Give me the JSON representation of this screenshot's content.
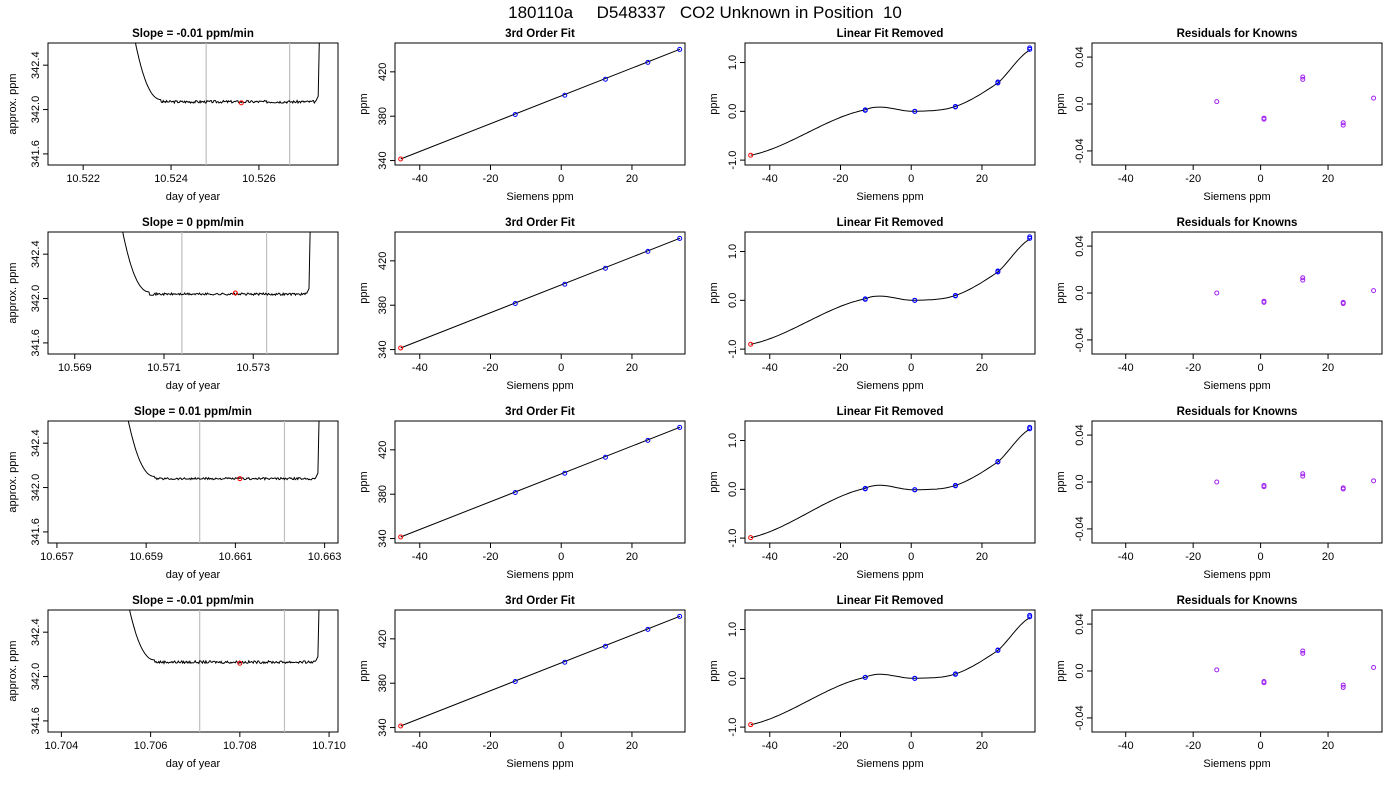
{
  "title": "180110a     D548337   CO2 Unknown in Position  10",
  "colors": {
    "line": "#000000",
    "vline": "#bfbfbf",
    "unknown": "#ff0000",
    "known": "#0000ff",
    "residual": "#a020f0"
  },
  "rows": [
    {
      "time_panel": {
        "title": "Slope =  -0.01  ppm/min"
      },
      "fit_panel": {
        "title": "3rd Order Fit"
      },
      "lin_panel": {
        "title": "Linear Fit Removed"
      },
      "res_panel": {
        "title": "Residuals for Knowns"
      }
    },
    {
      "time_panel": {
        "title": "Slope =  0  ppm/min"
      },
      "fit_panel": {
        "title": "3rd Order Fit"
      },
      "lin_panel": {
        "title": "Linear Fit Removed"
      },
      "res_panel": {
        "title": "Residuals for Knowns"
      }
    },
    {
      "time_panel": {
        "title": "Slope =  0.01  ppm/min"
      },
      "fit_panel": {
        "title": "3rd Order Fit"
      },
      "lin_panel": {
        "title": "Linear Fit Removed"
      },
      "res_panel": {
        "title": "Residuals for Knowns"
      }
    },
    {
      "time_panel": {
        "title": "Slope =  -0.01  ppm/min"
      },
      "fit_panel": {
        "title": "3rd Order Fit"
      },
      "lin_panel": {
        "title": "Linear Fit Removed"
      },
      "res_panel": {
        "title": "Residuals for Knowns"
      }
    }
  ],
  "chart_data": [
    {
      "type": "line",
      "title": "Slope =  -0.01  ppm/min",
      "xlabel": "day of year",
      "ylabel": "approx. ppm",
      "xlim": [
        10.5212,
        10.5278
      ],
      "ylim": [
        341.5,
        342.6
      ],
      "xticks": [
        10.522,
        10.524,
        10.526
      ],
      "xtick_labels": [
        "10.522",
        "10.524",
        "10.526"
      ],
      "yticks": [
        341.6,
        342.0,
        342.4
      ],
      "ytick_labels": [
        "341.6",
        "342.0",
        "342.4"
      ],
      "vlines": [
        10.5248,
        10.5267
      ],
      "trace_start": 10.523,
      "trace_end": 10.5273,
      "plateau": 342.07,
      "noise": 0.012,
      "unknown_point": {
        "x": 10.5256,
        "y": 342.06
      }
    },
    {
      "type": "scatter",
      "title": "3rd Order Fit",
      "xlabel": "Siemens ppm",
      "ylabel": "ppm",
      "xlim": [
        -47,
        35
      ],
      "ylim": [
        336,
        446
      ],
      "xticks": [
        -40,
        -20,
        0,
        20
      ],
      "yticks": [
        340,
        380,
        420
      ],
      "knowns": {
        "x": [
          -13,
          1,
          12.5,
          24.5,
          33.5
        ],
        "y": [
          381.5,
          398.9,
          413.3,
          428.5,
          440.2
        ]
      },
      "unknown": {
        "x": -45.4,
        "y": 341.4
      },
      "fit": {
        "slope": 1.253,
        "intercept": 398.3
      }
    },
    {
      "type": "scatter",
      "title": "Linear Fit Removed",
      "xlabel": "Siemens ppm",
      "ylabel": "ppm",
      "xlim": [
        -47,
        35
      ],
      "ylim": [
        -1.1,
        1.4
      ],
      "xticks": [
        -40,
        -20,
        0,
        20
      ],
      "yticks": [
        -1.0,
        0.0,
        1.0
      ],
      "knowns": {
        "x": [
          -13,
          -13,
          1,
          1,
          12.5,
          12.5,
          24.5,
          24.5,
          33.5,
          33.5
        ],
        "y": [
          0.03,
          0.02,
          0.0,
          0.0,
          0.1,
          0.09,
          0.58,
          0.6,
          1.27,
          1.3
        ]
      },
      "unknown": {
        "x": -45.4,
        "y": -0.9
      },
      "curve": {
        "x": [
          -45.4,
          -13,
          1,
          12.5,
          24.5,
          33.5
        ],
        "y": [
          -0.9,
          0.03,
          0.0,
          0.1,
          0.58,
          1.25
        ]
      }
    },
    {
      "type": "scatter",
      "title": "Residuals for Knowns",
      "xlabel": "Siemens ppm",
      "ylabel": "ppm",
      "xlim": [
        -50,
        36
      ],
      "ylim": [
        -0.052,
        0.052
      ],
      "xticks": [
        -40,
        -20,
        0,
        20
      ],
      "yticks": [
        -0.04,
        0.0,
        0.04
      ],
      "points": {
        "x": [
          -13,
          1,
          1,
          12.5,
          12.5,
          24.5,
          24.5,
          33.5
        ],
        "y": [
          0.002,
          -0.012,
          -0.013,
          0.021,
          0.023,
          -0.016,
          -0.018,
          0.005
        ]
      }
    },
    {
      "type": "line",
      "title": "Slope =  0  ppm/min",
      "xlabel": "day of year",
      "ylabel": "approx. ppm",
      "xlim": [
        10.5684,
        10.5749
      ],
      "ylim": [
        341.5,
        342.6
      ],
      "xticks": [
        10.569,
        10.571,
        10.573
      ],
      "xtick_labels": [
        "10.569",
        "10.571",
        "10.573"
      ],
      "yticks": [
        341.6,
        342.0,
        342.4
      ],
      "ytick_labels": [
        "341.6",
        "342.0",
        "342.4"
      ],
      "vlines": [
        10.5714,
        10.5733
      ],
      "trace_start": 10.5699,
      "trace_end": 10.5742,
      "plateau": 342.04,
      "noise": 0.01,
      "unknown_point": {
        "x": 10.5726,
        "y": 342.05
      }
    },
    {
      "type": "scatter",
      "title": "3rd Order Fit",
      "xlabel": "Siemens ppm",
      "ylabel": "ppm",
      "xlim": [
        -47,
        35
      ],
      "ylim": [
        336,
        446
      ],
      "xticks": [
        -40,
        -20,
        0,
        20
      ],
      "yticks": [
        340,
        380,
        420
      ],
      "knowns": {
        "x": [
          -13,
          1,
          12.5,
          24.5,
          33.5
        ],
        "y": [
          381.5,
          398.9,
          413.3,
          428.5,
          440.2
        ]
      },
      "unknown": {
        "x": -45.4,
        "y": 341.4
      },
      "fit": {
        "slope": 1.253,
        "intercept": 398.3
      }
    },
    {
      "type": "scatter",
      "title": "Linear Fit Removed",
      "xlabel": "Siemens ppm",
      "ylabel": "ppm",
      "xlim": [
        -47,
        35
      ],
      "ylim": [
        -1.1,
        1.4
      ],
      "xticks": [
        -40,
        -20,
        0,
        20
      ],
      "yticks": [
        -1.0,
        0.0,
        1.0
      ],
      "knowns": {
        "x": [
          -13,
          -13,
          1,
          1,
          12.5,
          12.5,
          24.5,
          24.5,
          33.5,
          33.5
        ],
        "y": [
          0.03,
          0.02,
          0.0,
          0.0,
          0.1,
          0.09,
          0.58,
          0.6,
          1.27,
          1.3
        ]
      },
      "unknown": {
        "x": -45.4,
        "y": -0.9
      },
      "curve": {
        "x": [
          -45.4,
          -13,
          1,
          12.5,
          24.5,
          33.5
        ],
        "y": [
          -0.9,
          0.03,
          0.0,
          0.1,
          0.58,
          1.25
        ]
      }
    },
    {
      "type": "scatter",
      "title": "Residuals for Knowns",
      "xlabel": "Siemens ppm",
      "ylabel": "ppm",
      "xlim": [
        -50,
        36
      ],
      "ylim": [
        -0.052,
        0.052
      ],
      "xticks": [
        -40,
        -20,
        0,
        20
      ],
      "yticks": [
        -0.04,
        0.0,
        0.04
      ],
      "points": {
        "x": [
          -13,
          1,
          1,
          12.5,
          12.5,
          24.5,
          24.5,
          33.5
        ],
        "y": [
          0.0,
          -0.007,
          -0.008,
          0.011,
          0.013,
          -0.008,
          -0.009,
          0.002
        ]
      }
    },
    {
      "type": "line",
      "title": "Slope =  0.01  ppm/min",
      "xlabel": "day of year",
      "ylabel": "approx. ppm",
      "xlim": [
        10.6568,
        10.6633
      ],
      "ylim": [
        341.5,
        342.6
      ],
      "xticks": [
        10.657,
        10.659,
        10.661,
        10.663
      ],
      "xtick_labels": [
        "10.657",
        "10.659",
        "10.661",
        "10.663"
      ],
      "yticks": [
        341.6,
        342.0,
        342.4
      ],
      "ytick_labels": [
        "341.6",
        "342.0",
        "342.4"
      ],
      "vlines": [
        10.6602,
        10.6621
      ],
      "trace_start": 10.6584,
      "trace_end": 10.6628,
      "plateau": 342.08,
      "noise": 0.01,
      "unknown_point": {
        "x": 10.6611,
        "y": 342.08
      }
    },
    {
      "type": "scatter",
      "title": "3rd Order Fit",
      "xlabel": "Siemens ppm",
      "ylabel": "ppm",
      "xlim": [
        -47,
        35
      ],
      "ylim": [
        336,
        446
      ],
      "xticks": [
        -40,
        -20,
        0,
        20
      ],
      "yticks": [
        340,
        380,
        420
      ],
      "knowns": {
        "x": [
          -13,
          1,
          12.5,
          24.5,
          33.5
        ],
        "y": [
          381.5,
          398.9,
          413.3,
          428.5,
          440.2
        ]
      },
      "unknown": {
        "x": -45.4,
        "y": 341.4
      },
      "fit": {
        "slope": 1.253,
        "intercept": 398.3
      }
    },
    {
      "type": "scatter",
      "title": "Linear Fit Removed",
      "xlabel": "Siemens ppm",
      "ylabel": "ppm",
      "xlim": [
        -47,
        35
      ],
      "ylim": [
        -1.1,
        1.4
      ],
      "xticks": [
        -40,
        -20,
        0,
        20
      ],
      "yticks": [
        -1.0,
        0.0,
        1.0
      ],
      "knowns": {
        "x": [
          -13,
          -13,
          1,
          1,
          12.5,
          12.5,
          24.5,
          24.5,
          33.5,
          33.5
        ],
        "y": [
          0.02,
          0.01,
          -0.01,
          -0.01,
          0.08,
          0.07,
          0.56,
          0.57,
          1.24,
          1.27
        ]
      },
      "unknown": {
        "x": -45.4,
        "y": -0.99
      },
      "curve": {
        "x": [
          -45.4,
          -13,
          1,
          12.5,
          24.5,
          33.5
        ],
        "y": [
          -0.99,
          0.02,
          -0.01,
          0.08,
          0.56,
          1.23
        ]
      }
    },
    {
      "type": "scatter",
      "title": "Residuals for Knowns",
      "xlabel": "Siemens ppm",
      "ylabel": "ppm",
      "xlim": [
        -50,
        36
      ],
      "ylim": [
        -0.052,
        0.052
      ],
      "xticks": [
        -40,
        -20,
        0,
        20
      ],
      "yticks": [
        -0.04,
        0.0,
        0.04
      ],
      "points": {
        "x": [
          -13,
          1,
          1,
          12.5,
          12.5,
          24.5,
          24.5,
          33.5
        ],
        "y": [
          0.0,
          -0.003,
          -0.004,
          0.007,
          0.005,
          -0.005,
          -0.006,
          0.001
        ]
      }
    },
    {
      "type": "line",
      "title": "Slope =  -0.01  ppm/min",
      "xlabel": "day of year",
      "ylabel": "approx. ppm",
      "xlim": [
        10.7037,
        10.7102
      ],
      "ylim": [
        341.5,
        342.6
      ],
      "xticks": [
        10.704,
        10.706,
        10.708,
        10.71
      ],
      "xtick_labels": [
        "10.704",
        "10.706",
        "10.708",
        "10.710"
      ],
      "yticks": [
        341.6,
        342.0,
        342.4
      ],
      "ytick_labels": [
        "341.6",
        "342.0",
        "342.4"
      ],
      "vlines": [
        10.7071,
        10.709
      ],
      "trace_start": 10.7053,
      "trace_end": 10.7097,
      "plateau": 342.13,
      "noise": 0.012,
      "unknown_point": {
        "x": 10.708,
        "y": 342.12
      }
    },
    {
      "type": "scatter",
      "title": "3rd Order Fit",
      "xlabel": "Siemens ppm",
      "ylabel": "ppm",
      "xlim": [
        -47,
        35
      ],
      "ylim": [
        336,
        446
      ],
      "xticks": [
        -40,
        -20,
        0,
        20
      ],
      "yticks": [
        340,
        380,
        420
      ],
      "knowns": {
        "x": [
          -13,
          1,
          12.5,
          24.5,
          33.5
        ],
        "y": [
          381.5,
          398.9,
          413.3,
          428.5,
          440.2
        ]
      },
      "unknown": {
        "x": -45.4,
        "y": 341.4
      },
      "fit": {
        "slope": 1.253,
        "intercept": 398.3
      }
    },
    {
      "type": "scatter",
      "title": "Linear Fit Removed",
      "xlabel": "Siemens ppm",
      "ylabel": "ppm",
      "xlim": [
        -47,
        35
      ],
      "ylim": [
        -1.1,
        1.4
      ],
      "xticks": [
        -40,
        -20,
        0,
        20
      ],
      "yticks": [
        -1.0,
        0.0,
        1.0
      ],
      "knowns": {
        "x": [
          -13,
          -13,
          1,
          1,
          12.5,
          12.5,
          24.5,
          24.5,
          33.5,
          33.5
        ],
        "y": [
          0.02,
          0.02,
          0.0,
          0.0,
          0.09,
          0.08,
          0.57,
          0.58,
          1.26,
          1.29
        ]
      },
      "unknown": {
        "x": -45.4,
        "y": -0.95
      },
      "curve": {
        "x": [
          -45.4,
          -13,
          1,
          12.5,
          24.5,
          33.5
        ],
        "y": [
          -0.95,
          0.02,
          0.0,
          0.09,
          0.57,
          1.24
        ]
      }
    },
    {
      "type": "scatter",
      "title": "Residuals for Knowns",
      "xlabel": "Siemens ppm",
      "ylabel": "ppm",
      "xlim": [
        -50,
        36
      ],
      "ylim": [
        -0.052,
        0.052
      ],
      "xticks": [
        -40,
        -20,
        0,
        20
      ],
      "yticks": [
        -0.04,
        0.0,
        0.04
      ],
      "points": {
        "x": [
          -13,
          1,
          1,
          12.5,
          12.5,
          24.5,
          24.5,
          33.5
        ],
        "y": [
          0.001,
          -0.009,
          -0.01,
          0.015,
          0.017,
          -0.012,
          -0.014,
          0.003
        ]
      }
    }
  ]
}
